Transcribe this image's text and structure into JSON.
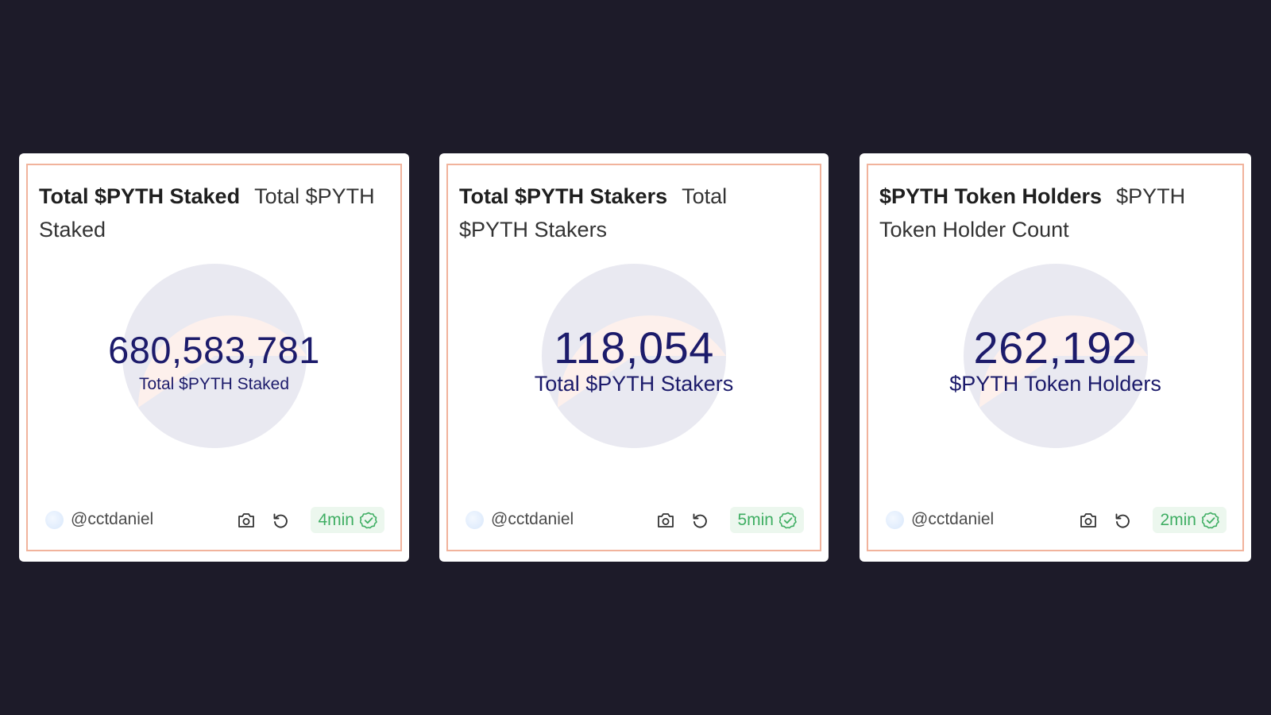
{
  "cards": [
    {
      "title": "Total $PYTH Staked",
      "subtitle": "Total $PYTH Staked",
      "value": "680,583,781",
      "label": "Total $PYTH Staked",
      "author": "@cctdaniel",
      "age": "4min"
    },
    {
      "title": "Total $PYTH Stakers",
      "subtitle": "Total $PYTH Stakers",
      "value": "118,054",
      "label": "Total $PYTH Stakers",
      "author": "@cctdaniel",
      "age": "5min"
    },
    {
      "title": "$PYTH Token Holders",
      "subtitle": "$PYTH Token Holder Count",
      "value": "262,192",
      "label": "$PYTH Token Holders",
      "author": "@cctdaniel",
      "age": "2min"
    }
  ],
  "icons": {
    "snapshot": "camera-icon",
    "refresh": "refresh-icon",
    "status": "check-circle-icon"
  },
  "colors": {
    "background": "#1d1b29",
    "card_border": "#f1b39c",
    "value_text": "#1c1b6b",
    "badge_bg": "#ecf7ee",
    "badge_text": "#3fae63",
    "pie_top": "#fdf0ec",
    "pie_bottom": "#e9e9f1"
  }
}
